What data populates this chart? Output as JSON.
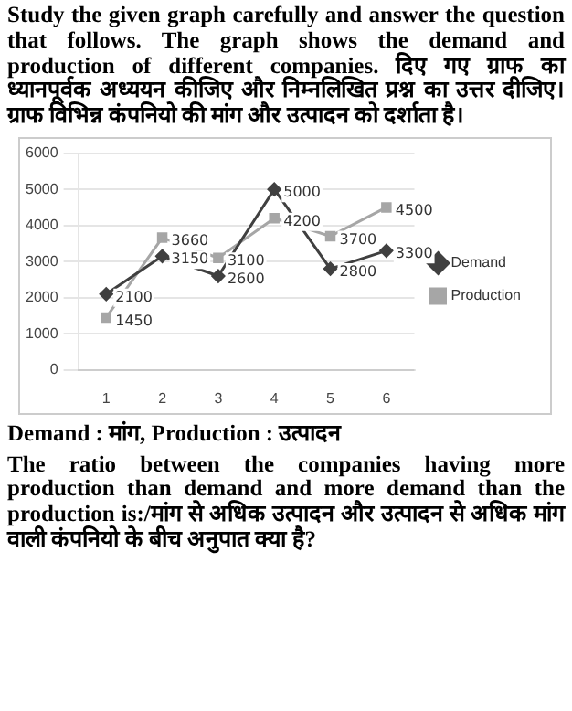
{
  "chart_data": {
    "type": "line",
    "title": "Study the given graph carefully and answer the question that follows. The graph shows the demand and production of different companies. दिए गए ग्राफ का ध्यानपूर्वक अध्ययन कीजिए और निम्नलिखित प्रश्न का उत्तर दीजिए। ग्राफ विभिन्न कंपनियो की मांग और उत्पादन को दर्शाता है।",
    "categories": [
      "1",
      "2",
      "3",
      "4",
      "5",
      "6"
    ],
    "series": [
      {
        "name": "Demand",
        "color": "#404040",
        "marker": "diamond",
        "values": [
          2100,
          3150,
          2600,
          5000,
          2800,
          3300
        ]
      },
      {
        "name": "Production",
        "color": "#a6a6a6",
        "marker": "square",
        "values": [
          1450,
          3660,
          3100,
          4200,
          3700,
          4500
        ]
      }
    ],
    "ylim": [
      0,
      6000
    ],
    "yticks": [
      0,
      1000,
      2000,
      3000,
      4000,
      5000,
      6000
    ],
    "grid": "y",
    "legend": "right",
    "data_labels": true,
    "annotations": [
      "Demand : मांग, Production : उत्पादन",
      "The ratio between the companies having more production than demand and more demand than the production is:/मांग से अधिक उत्पादन और उत्पादन से अधिक मांग वाली कंपनियो के बीच अनुपात क्या है?"
    ]
  }
}
